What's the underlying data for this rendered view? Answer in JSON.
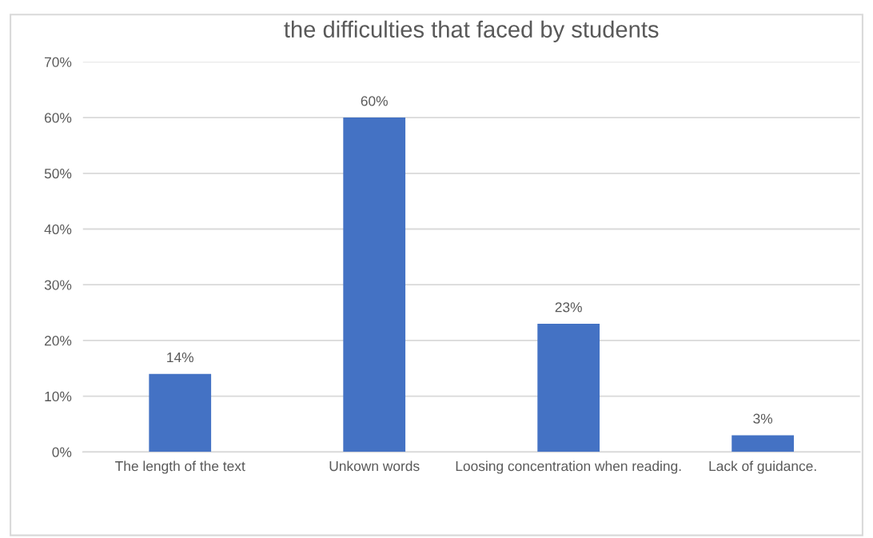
{
  "chart_data": {
    "type": "bar",
    "title": "the difficulties that faced by students",
    "categories": [
      "The length of the text",
      "Unkown words",
      "Loosing concentration when reading.",
      "Lack of guidance."
    ],
    "values": [
      14,
      60,
      23,
      3
    ],
    "color": "#4472c4",
    "value_labels": [
      "14%",
      "60%",
      "23%",
      "3%"
    ],
    "ylim": [
      0,
      70
    ],
    "yticks": [
      {
        "value": 0,
        "label": "0%"
      },
      {
        "value": 10,
        "label": "10%"
      },
      {
        "value": 20,
        "label": "20%"
      },
      {
        "value": 30,
        "label": "30%"
      },
      {
        "value": 40,
        "label": "40%"
      },
      {
        "value": 50,
        "label": "50%"
      },
      {
        "value": 60,
        "label": "60%"
      },
      {
        "value": 70,
        "label": "70%"
      }
    ],
    "grid": "y",
    "legend": false
  }
}
